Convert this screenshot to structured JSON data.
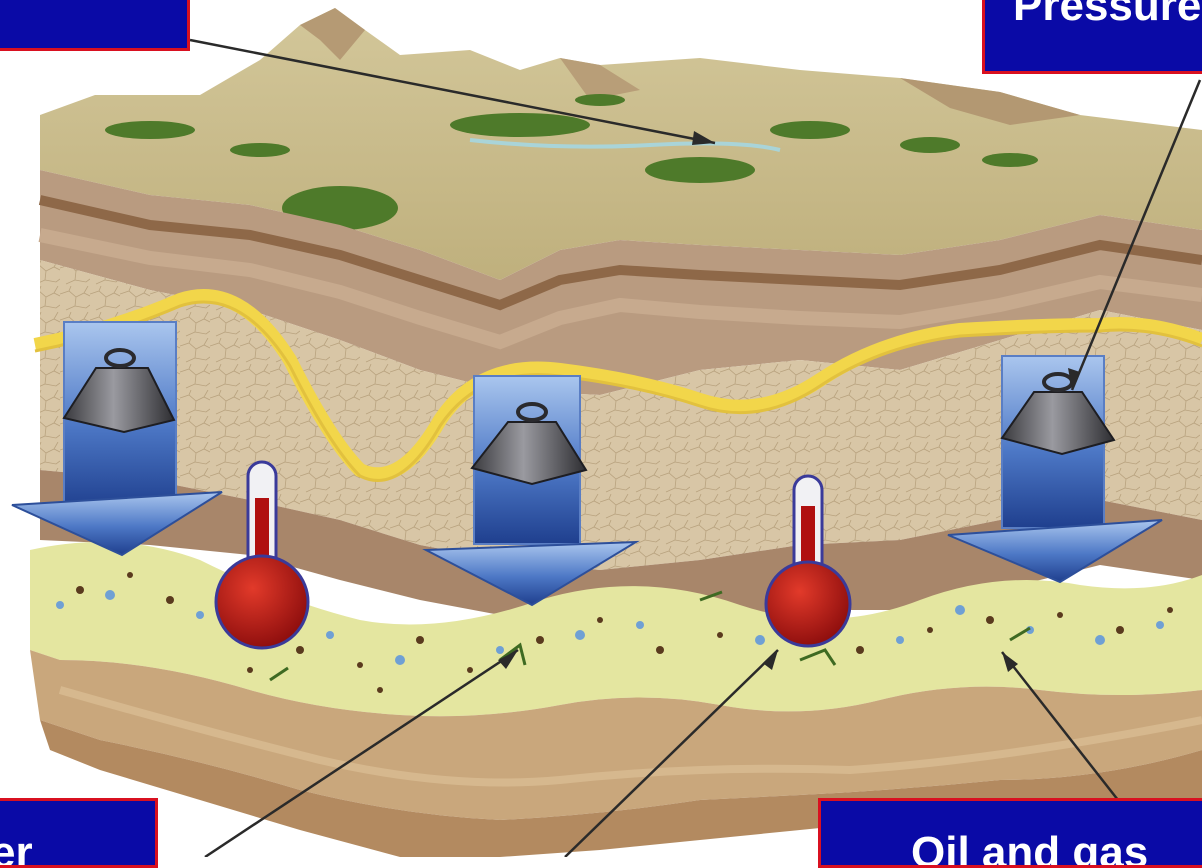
{
  "labels": {
    "top_left": "",
    "top_right": "Pressure",
    "bottom_left": "er",
    "bottom_right": "Oil and gas"
  },
  "icons": {
    "weight": "weight-icon",
    "thermometer": "thermometer-icon",
    "arrow": "down-arrow-icon"
  },
  "colors": {
    "label_bg": "#0a0aa6",
    "label_border": "#d91020",
    "arrow_blue": "#2e58b0",
    "thermo_red": "#b01010",
    "source_layer": "#e4e6a0",
    "yellow_layer": "#f2d64a"
  }
}
